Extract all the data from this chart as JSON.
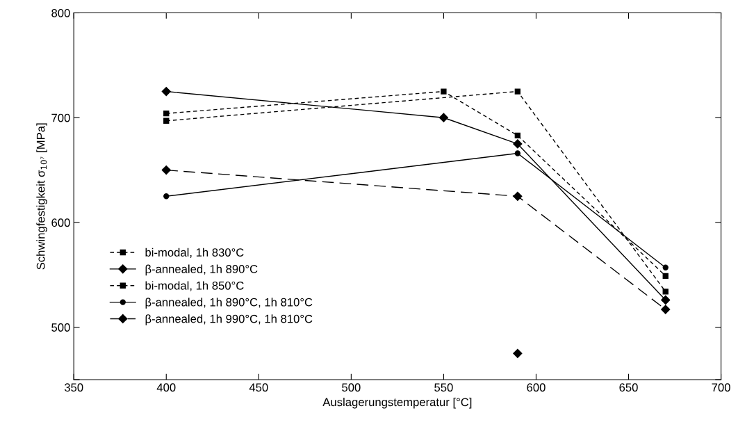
{
  "chart_data": {
    "type": "line",
    "xlabel": "Auslagerungstemperatur [°C]",
    "ylabel": "Schwingfestigkeit σ$_{10⁷}$ [MPa]",
    "xlim": [
      350,
      700
    ],
    "xticks": [
      350,
      400,
      450,
      500,
      550,
      600,
      650,
      700
    ],
    "ylim": [
      450,
      800
    ],
    "yticks": [
      {
        "value": 450,
        "label": null
      },
      500,
      600,
      700,
      800
    ],
    "grid": false,
    "legend": "bottom left",
    "series": [
      {
        "name": "bi-modal, 1h 830°C",
        "color": "#000000",
        "x": [
          400,
          550,
          590,
          670
        ],
        "values": [
          704,
          725,
          683,
          549
        ],
        "marker": "square",
        "line_style": "dotted"
      },
      {
        "name": "β-annealed, 1h 890°C",
        "color": "#000000",
        "x": [
          400,
          550,
          590,
          670
        ],
        "values": [
          725,
          700,
          675,
          526
        ],
        "marker": "diamond",
        "line_style": "solid"
      },
      {
        "name": "bi-modal, 1h 850°C",
        "color": "#000000",
        "x": [
          400,
          590,
          670
        ],
        "values": [
          697,
          725,
          534
        ],
        "marker": "square",
        "line_style": "dotted"
      },
      {
        "name": "β-annealed, 1h 890°C, 1h 810°C",
        "color": "#000000",
        "x": [
          400,
          590,
          670
        ],
        "values": [
          625,
          666,
          557
        ],
        "marker": "circle",
        "line_style": "solid"
      },
      {
        "name": "β-annealed, 1h 990°C, 1h 810°C",
        "color": "#000000",
        "x": [
          400,
          590,
          670
        ],
        "values": [
          650,
          625,
          517
        ],
        "marker": "diamond",
        "line_style": "dashed"
      },
      {
        "type": "scatter",
        "color": "#000000",
        "x": [
          590
        ],
        "values": [
          475
        ],
        "marker": "diamond"
      }
    ]
  }
}
